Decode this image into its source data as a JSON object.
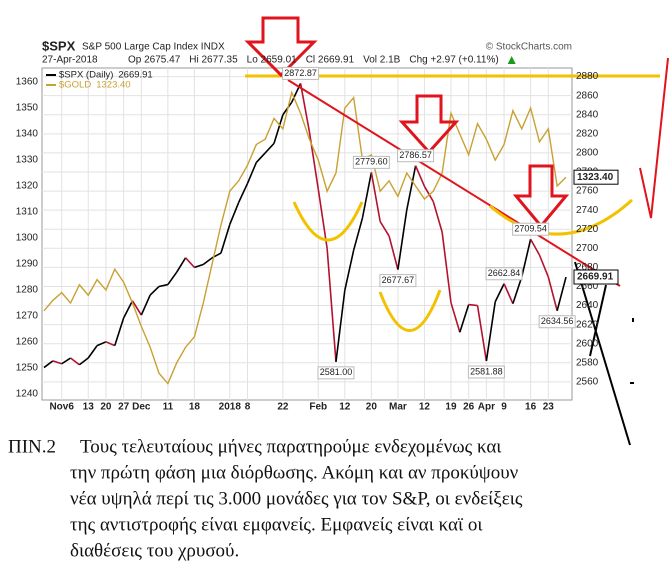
{
  "chart_data": {
    "type": "line",
    "title": "$SPX",
    "subtitle": "S&P 500 Large Cap Index INDX",
    "source": "© StockCharts.com",
    "date": "27-Apr-2018",
    "info": [
      "Op 2675.47",
      "Hi 2677.35",
      "Lo 2659.01",
      "Cl 2669.91",
      "Vol 2.1B",
      "Chg +2.97 (+0.11%)"
    ],
    "categories": [
      null,
      null,
      "Nov6",
      null,
      null,
      "13",
      null,
      "20",
      null,
      "27",
      null,
      "Dec",
      null,
      null,
      "11",
      null,
      null,
      "18",
      null,
      null,
      null,
      "2018",
      null,
      "8",
      null,
      null,
      null,
      "22",
      null,
      null,
      null,
      "Feb",
      null,
      null,
      "12",
      null,
      null,
      "20",
      null,
      null,
      "Mar",
      null,
      null,
      "12",
      null,
      null,
      "19",
      null,
      "26",
      null,
      "Apr",
      null,
      "9",
      null,
      null,
      "16",
      null,
      "23",
      null,
      null
    ],
    "series": [
      {
        "name": "$SPX (Daily)",
        "axis": "y2",
        "color": "#000000",
        "down_color": "#b3122e",
        "values": [
          2575,
          2582,
          2579,
          2585,
          2578,
          2585,
          2598,
          2602,
          2598,
          2627,
          2645,
          2630,
          2651,
          2660,
          2662,
          2675,
          2690,
          2680,
          2683,
          2690,
          2695,
          2725,
          2748,
          2768,
          2790,
          2800,
          2810,
          2840,
          2853,
          2872.87,
          2822,
          2762,
          2700,
          2581,
          2656,
          2698,
          2732,
          2779.6,
          2728,
          2713,
          2677.67,
          2740,
          2786.57,
          2765,
          2749,
          2717,
          2643,
          2612,
          2641,
          2640,
          2581.88,
          2644,
          2662.84,
          2642,
          2670,
          2709.54,
          2693,
          2670,
          2634.56,
          2669.91
        ],
        "value_labels": [
          null,
          null,
          null,
          null,
          null,
          null,
          null,
          null,
          null,
          null,
          null,
          null,
          null,
          null,
          null,
          null,
          null,
          null,
          null,
          null,
          null,
          null,
          null,
          null,
          null,
          null,
          null,
          null,
          null,
          "2872.87",
          null,
          null,
          null,
          "2581.00",
          null,
          null,
          null,
          "2779.60",
          null,
          null,
          "2677.67",
          null,
          "2786.57",
          null,
          null,
          null,
          null,
          null,
          null,
          null,
          "2581.88",
          null,
          "2662.84",
          null,
          null,
          "2709.54",
          null,
          null,
          "2634.56",
          null
        ]
      },
      {
        "name": "$GOLD",
        "axis": "y",
        "color": "#c9a032",
        "values": [
          1272,
          1276,
          1279,
          1275,
          1282,
          1278,
          1284,
          1280,
          1288,
          1283,
          1275,
          1266,
          1258,
          1248,
          1244,
          1252,
          1258,
          1262,
          1275,
          1290,
          1305,
          1318,
          1322,
          1328,
          1336,
          1338,
          1346,
          1342,
          1356,
          1348,
          1338,
          1330,
          1318,
          1325,
          1350,
          1354,
          1330,
          1332,
          1318,
          1322,
          1316,
          1325,
          1320,
          1315,
          1318,
          1325,
          1348,
          1340,
          1332,
          1344,
          1338,
          1330,
          1336,
          1349,
          1342,
          1350,
          1337,
          1342,
          1320,
          1323.4
        ],
        "value_labels": [
          null,
          null,
          null,
          null,
          null,
          null,
          null,
          null,
          null,
          null,
          null,
          null,
          null,
          null,
          null,
          null,
          null,
          null,
          null,
          null,
          null,
          null,
          null,
          null,
          null,
          null,
          null,
          null,
          null,
          null,
          null,
          null,
          null,
          null,
          null,
          null,
          null,
          null,
          null,
          null,
          null,
          null,
          null,
          null,
          null,
          null,
          null,
          null,
          null,
          null,
          null,
          null,
          null,
          null,
          null,
          null,
          null,
          null,
          null,
          "1323.40"
        ]
      }
    ],
    "ylim": [
      1237.7,
      1365.4
    ],
    "yticks": [
      1240,
      1250,
      1260,
      1270,
      1280,
      1290,
      1300,
      1310,
      1320,
      1330,
      1340,
      1350,
      1360
    ],
    "y2lim": [
      2541,
      2889
    ],
    "y2ticks": [
      2560,
      2580,
      2600,
      2620,
      2640,
      2660,
      2680,
      2700,
      2720,
      2740,
      2760,
      2780,
      2800,
      2820,
      2840,
      2860,
      2880
    ],
    "grid": true
  },
  "caption": {
    "label": "ΠΙΝ.2",
    "lines": [
      "Τους τελευταίους μήνες παρατηρούμε ενδεχομένως και",
      "την πρώτη φάση μια διόρθωσης. Ακόμη και αν προκύψουν",
      "νέα υψηλά περί τις 3.000 μονάδες για τον S&P, οι ενδείξεις",
      "της αντιστροφής είναι εμφανείς. Εμφανείς είναι καϊ οι",
      "διαθέσεις του χρυσού."
    ]
  }
}
